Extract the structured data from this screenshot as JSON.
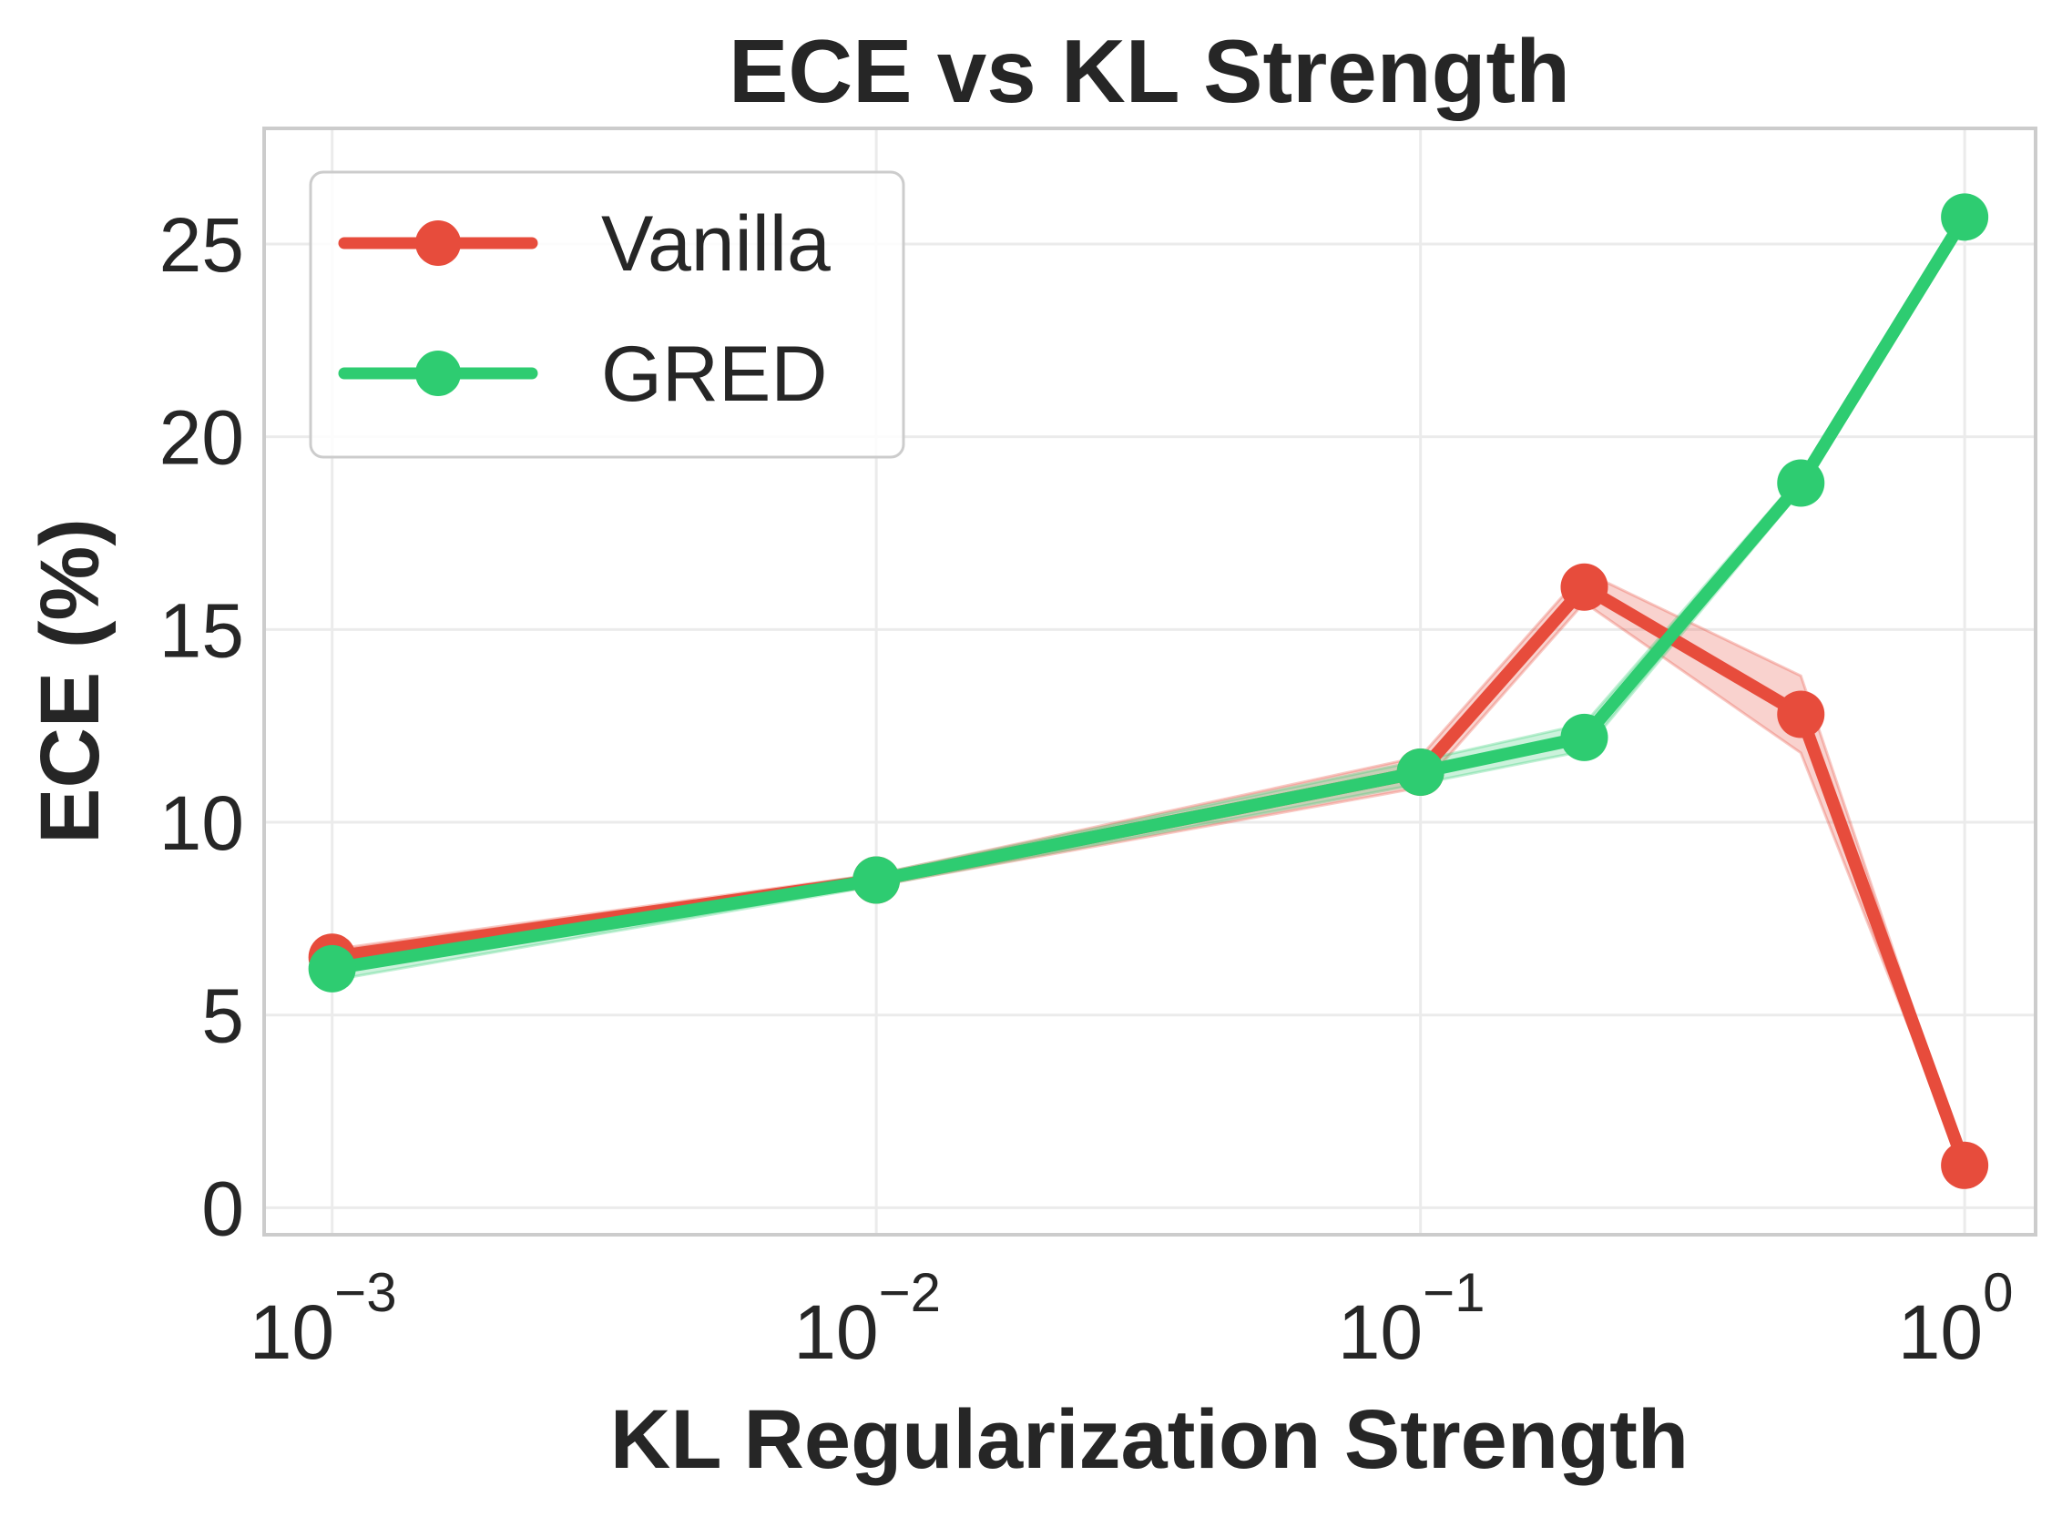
{
  "chart_data": {
    "type": "line",
    "title": "ECE vs KL Strength",
    "xlabel": "KL Regularization Strength",
    "ylabel": "ECE (%)",
    "xscale": "log",
    "xlim": [
      0.00075,
      1.35
    ],
    "ylim": [
      -0.7,
      28
    ],
    "xticks": [
      {
        "base": "10",
        "exp": "−3",
        "value": 0.001
      },
      {
        "base": "10",
        "exp": "−2",
        "value": 0.01
      },
      {
        "base": "10",
        "exp": "−1",
        "value": 0.1
      },
      {
        "base": "10",
        "exp": "0",
        "value": 1
      }
    ],
    "yticks": [
      0,
      5,
      10,
      15,
      20,
      25
    ],
    "grid": true,
    "legend_position": "top-left",
    "x": [
      0.001,
      0.01,
      0.1,
      0.2,
      0.5,
      1.0
    ],
    "series": [
      {
        "name": "Vanilla",
        "color": "#e74c3c",
        "values": [
          6.5,
          8.5,
          11.3,
          16.1,
          12.8,
          1.1
        ],
        "std": [
          0.2,
          0.15,
          0.4,
          0.4,
          1.0,
          0.1
        ]
      },
      {
        "name": "GRED",
        "color": "#2ecc71",
        "values": [
          6.2,
          8.5,
          11.3,
          12.2,
          18.8,
          25.7
        ],
        "std": [
          0.3,
          0.15,
          0.3,
          0.35,
          0.2,
          0.25
        ]
      }
    ]
  }
}
